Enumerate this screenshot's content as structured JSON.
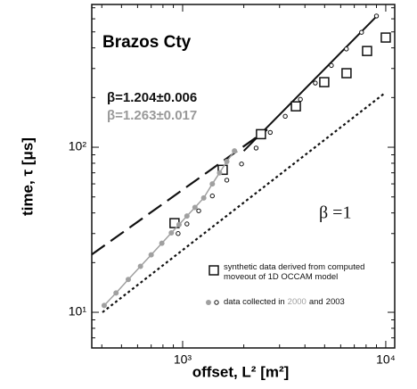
{
  "chart_data": {
    "type": "scatter",
    "title": "Brazos Cty",
    "x_label": "offset, L² [m²]",
    "y_label": "time, τ [μs]",
    "log_x": true,
    "log_y": true,
    "xlim": [
      357,
      11070
    ],
    "ylim": [
      6.08,
      733
    ],
    "xticks": [
      {
        "value": 1000,
        "label": "10³"
      },
      {
        "value": 10000,
        "label": "10⁴"
      }
    ],
    "yticks": [
      {
        "value": 10,
        "label": "10¹"
      },
      {
        "value": 100,
        "label": "10²"
      }
    ],
    "xminorticks": [
      400,
      500,
      600,
      700,
      800,
      900,
      2000,
      3000,
      4000,
      5000,
      6000,
      7000,
      8000,
      9000
    ],
    "yminorticks": [
      7,
      8,
      9,
      20,
      30,
      40,
      50,
      60,
      70,
      80,
      90,
      200,
      300,
      400,
      500,
      600,
      700
    ],
    "series": [
      {
        "name": "synthetic data derived from computed moveout of 1D OCCAM model",
        "marker": "square",
        "color": "#111111",
        "x": [
          912,
          1575,
          2430,
          3610,
          4980,
          6410,
          8090,
          10000
        ],
        "values": [
          34.7,
          73,
          120,
          177,
          248,
          281,
          383,
          462
        ]
      },
      {
        "name": "2000",
        "marker": "dot",
        "connect": true,
        "color": "#a0a0a0",
        "x": [
          411,
          470,
          540,
          620,
          700,
          790,
          880,
          960,
          1050,
          1150,
          1270,
          1400,
          1520,
          1650,
          1800
        ],
        "values": [
          11,
          13.1,
          15.8,
          19,
          22.3,
          26.2,
          30.3,
          34,
          38.3,
          43.2,
          49.3,
          60,
          70,
          82,
          95
        ]
      },
      {
        "name": "2003",
        "marker": "circle",
        "color": "#111111",
        "x": [
          950,
          1050,
          1200,
          1400,
          1650,
          1950,
          2300,
          2700,
          3200,
          3800,
          4500,
          5400,
          6400,
          7600,
          9000
        ],
        "values": [
          30,
          34.3,
          41.2,
          50.7,
          63.2,
          79.2,
          98.9,
          123,
          154,
          195,
          245,
          313,
          394,
          497,
          624
        ]
      }
    ],
    "lines": [
      {
        "style": "solid",
        "color": "#111111",
        "x": [
          2000,
          9000
        ],
        "values": [
          95,
          620
        ]
      },
      {
        "style": "dashed",
        "color": "#111111",
        "x": [
          357,
          2610
        ],
        "values": [
          22.4,
          128
        ]
      },
      {
        "style": "dotted",
        "color": "#111111",
        "x": [
          403,
          9800
        ],
        "values": [
          10,
          211
        ]
      }
    ],
    "annotations": [
      {
        "text": "β=1.204±0.006",
        "color": "#111111"
      },
      {
        "text": "β=1.263±0.017",
        "color": "#999999"
      },
      {
        "text": "β =1",
        "color": "#111111"
      }
    ],
    "legend_phrase": {
      "prefix": "data collected in",
      "joiner": "and"
    }
  }
}
